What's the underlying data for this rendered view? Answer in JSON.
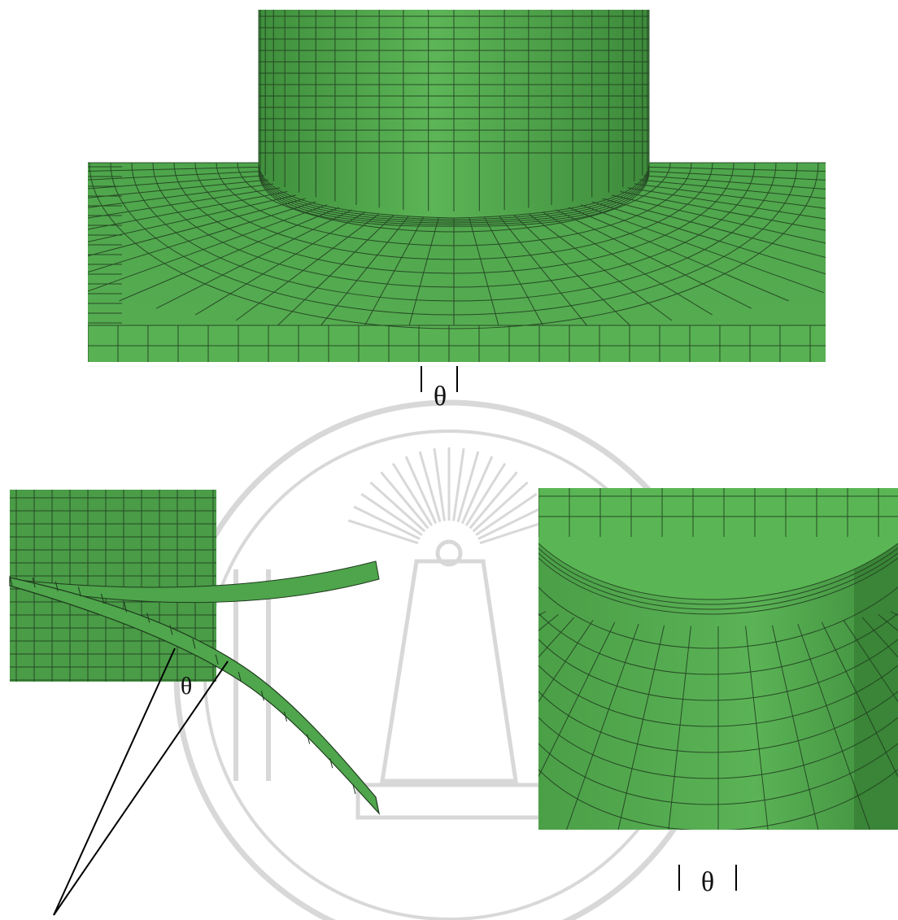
{
  "figure": {
    "top_label": "θ",
    "left_label": "θ",
    "right_label": "θ"
  },
  "colors": {
    "mesh_fill": "#4da24a",
    "mesh_fill_light": "#5cb256",
    "mesh_fill_dark": "#3d8a3b",
    "mesh_line": "#1f3a1f",
    "watermark": "#d4d4d4",
    "annotation": "#000000"
  },
  "watermark": {
    "type": "university-seal",
    "description_icon": "seal-watermark-icon"
  }
}
